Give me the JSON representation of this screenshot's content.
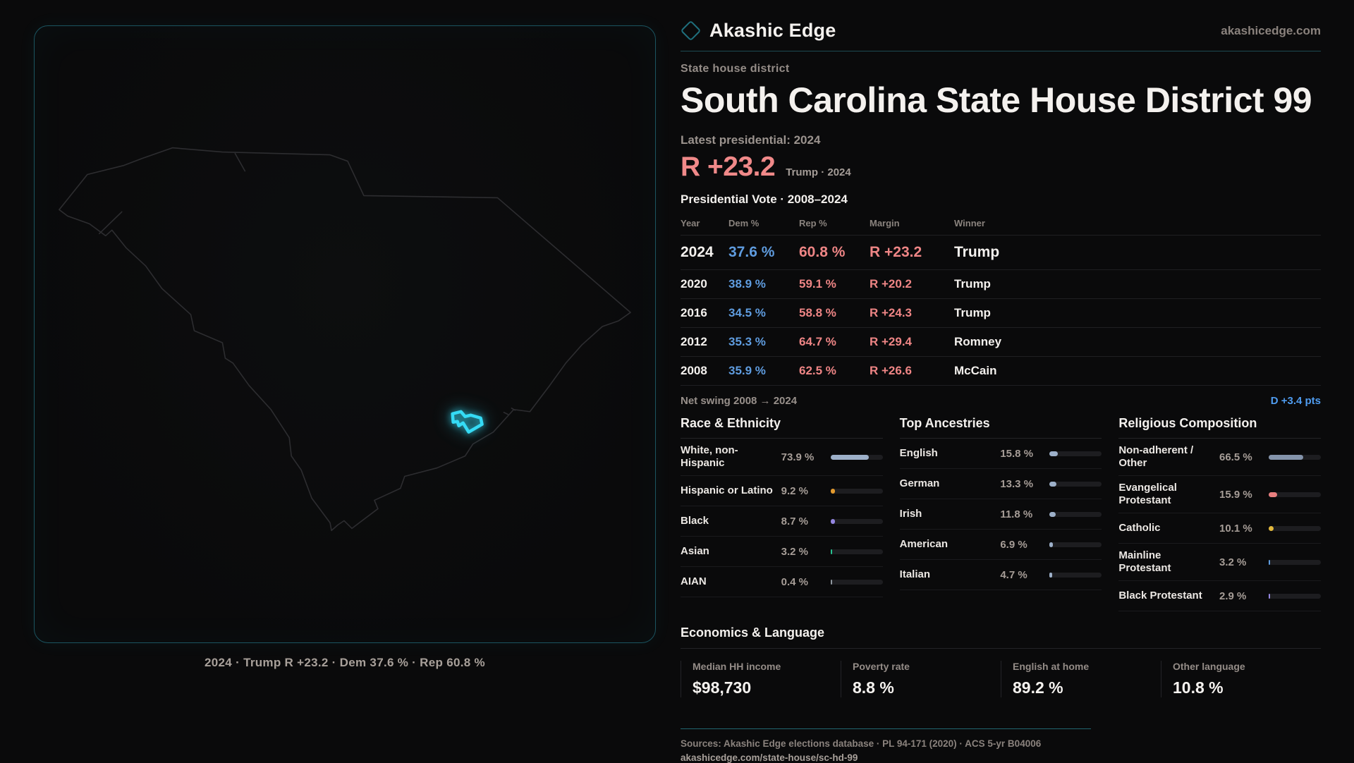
{
  "brand": {
    "name": "Akashic Edge",
    "site": "akashicedge.com"
  },
  "kicker": "State house district",
  "title": "South Carolina State House District 99",
  "latest_label": "Latest presidential: 2024",
  "headline_margin": {
    "value": "R +23.2",
    "note": "Trump · 2024"
  },
  "accent_colors": {
    "dem_blue": "#5f9cdf",
    "rep_red": "#ee8585",
    "district_cyan": "#35dbf5",
    "swing_blue": "#4f9cf0"
  },
  "pres_table": {
    "title": "Presidential Vote · 2008–2024",
    "columns": {
      "year": "Year",
      "dem": "Dem %",
      "rep": "Rep %",
      "margin": "Margin",
      "winner": "Winner"
    },
    "rows": [
      {
        "year": "2024",
        "dem": "37.6 %",
        "rep": "60.8 %",
        "margin": "R +23.2",
        "winner": "Trump"
      },
      {
        "year": "2020",
        "dem": "38.9 %",
        "rep": "59.1 %",
        "margin": "R +20.2",
        "winner": "Trump"
      },
      {
        "year": "2016",
        "dem": "34.5 %",
        "rep": "58.8 %",
        "margin": "R +24.3",
        "winner": "Trump"
      },
      {
        "year": "2012",
        "dem": "35.3 %",
        "rep": "64.7 %",
        "margin": "R +29.4",
        "winner": "Romney"
      },
      {
        "year": "2008",
        "dem": "35.9 %",
        "rep": "62.5 %",
        "margin": "R +26.6",
        "winner": "McCain"
      }
    ]
  },
  "net_swing": {
    "label": "Net swing 2008 → 2024",
    "value": "D +3.4 pts"
  },
  "race": {
    "title": "Race & Ethnicity",
    "rows": [
      {
        "label": "White, non-Hispanic",
        "value": "73.9 %",
        "pct": 73.9,
        "color": "#9db0c9"
      },
      {
        "label": "Hispanic or Latino",
        "value": "9.2 %",
        "pct": 9.2,
        "color": "#e39a2e"
      },
      {
        "label": "Black",
        "value": "8.7 %",
        "pct": 8.7,
        "color": "#9486e0"
      },
      {
        "label": "Asian",
        "value": "3.2 %",
        "pct": 3.2,
        "color": "#27c290"
      },
      {
        "label": "AIAN",
        "value": "0.4 %",
        "pct": 0.4,
        "color": "#8f979f"
      }
    ]
  },
  "ancestries": {
    "title": "Top Ancestries",
    "rows": [
      {
        "label": "English",
        "value": "15.8 %",
        "pct": 15.8,
        "color": "#9db0c9"
      },
      {
        "label": "German",
        "value": "13.3 %",
        "pct": 13.3,
        "color": "#9db0c9"
      },
      {
        "label": "Irish",
        "value": "11.8 %",
        "pct": 11.8,
        "color": "#9db0c9"
      },
      {
        "label": "American",
        "value": "6.9 %",
        "pct": 6.9,
        "color": "#9db0c9"
      },
      {
        "label": "Italian",
        "value": "4.7 %",
        "pct": 4.7,
        "color": "#9db0c9"
      }
    ]
  },
  "religion": {
    "title": "Religious Composition",
    "rows": [
      {
        "label": "Non-adherent / Other",
        "value": "66.5 %",
        "pct": 66.5,
        "color": "#8494ab"
      },
      {
        "label": "Evangelical Protestant",
        "value": "15.9 %",
        "pct": 15.9,
        "color": "#e87f7f"
      },
      {
        "label": "Catholic",
        "value": "10.1 %",
        "pct": 10.1,
        "color": "#e3b93c"
      },
      {
        "label": "Mainline Protestant",
        "value": "3.2 %",
        "pct": 3.2,
        "color": "#5f9cdf"
      },
      {
        "label": "Black Protestant",
        "value": "2.9 %",
        "pct": 2.9,
        "color": "#9486e0"
      }
    ]
  },
  "economics": {
    "title": "Economics & Language",
    "stats": [
      {
        "label": "Median HH income",
        "value": "$98,730"
      },
      {
        "label": "Poverty rate",
        "value": "8.8 %"
      },
      {
        "label": "English at home",
        "value": "89.2 %"
      },
      {
        "label": "Other language",
        "value": "10.8 %"
      }
    ]
  },
  "footer": {
    "sources": "Sources: Akashic Edge elections database · PL 94-171 (2020) · ACS 5-yr B04006",
    "permalink": "akashicedge.com/state-house/sc-hd-99"
  },
  "map": {
    "caption": "2024 · Trump R +23.2 · Dem 37.6 % · Rep 60.8 %"
  }
}
